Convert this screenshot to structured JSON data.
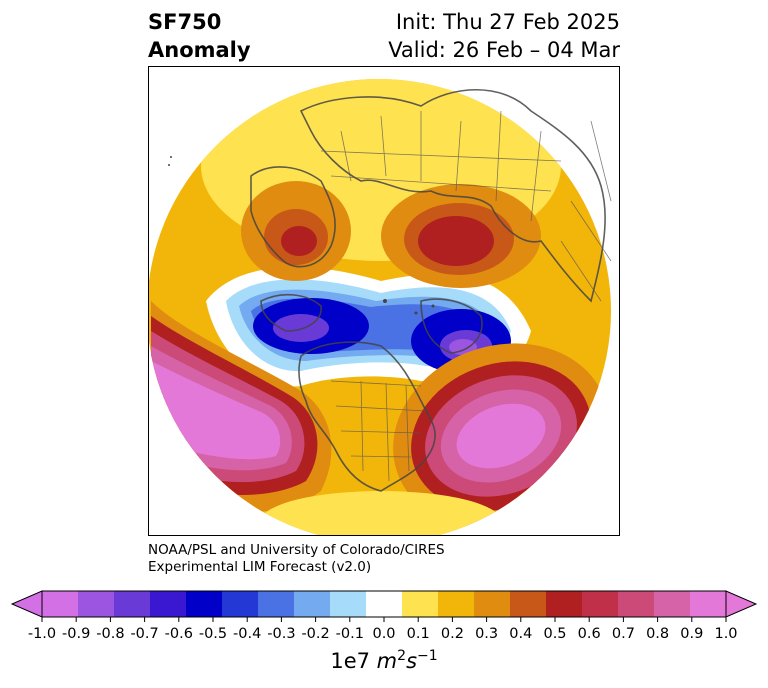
{
  "title": {
    "left_line1": "SF750",
    "left_line2": "Anomaly",
    "right_line1": "Init: Thu 27 Feb 2025",
    "right_line2": "Valid: 26 Feb – 04 Mar"
  },
  "credit": {
    "line1": "NOAA/PSL and University of Colorado/CIRES",
    "line2": "Experimental LIM Forecast (v2.0)"
  },
  "colorbar": {
    "ticks": [
      "-1.0",
      "-0.9",
      "-0.8",
      "-0.7",
      "-0.6",
      "-0.5",
      "-0.4",
      "-0.3",
      "-0.2",
      "-0.1",
      "0.0",
      "0.1",
      "0.2",
      "0.3",
      "0.4",
      "0.5",
      "0.6",
      "0.7",
      "0.8",
      "0.9",
      "1.0"
    ],
    "colors": [
      "#d470e6",
      "#9b55e0",
      "#6a3ad6",
      "#3a18d2",
      "#0000c8",
      "#2438d6",
      "#4a72e4",
      "#74aaf0",
      "#a6dcfa",
      "#ffffff",
      "#ffe250",
      "#f2b60a",
      "#e08c10",
      "#c85818",
      "#b02020",
      "#c03048",
      "#cc4a78",
      "#d662a8",
      "#e478d8"
    ],
    "over_color": "#e478d8",
    "under_color": "#d470e6",
    "units_prefix": "1e7 ",
    "units_m": "m",
    "units_m_exp": "2",
    "units_s": "s",
    "units_s_exp": "−1"
  }
}
